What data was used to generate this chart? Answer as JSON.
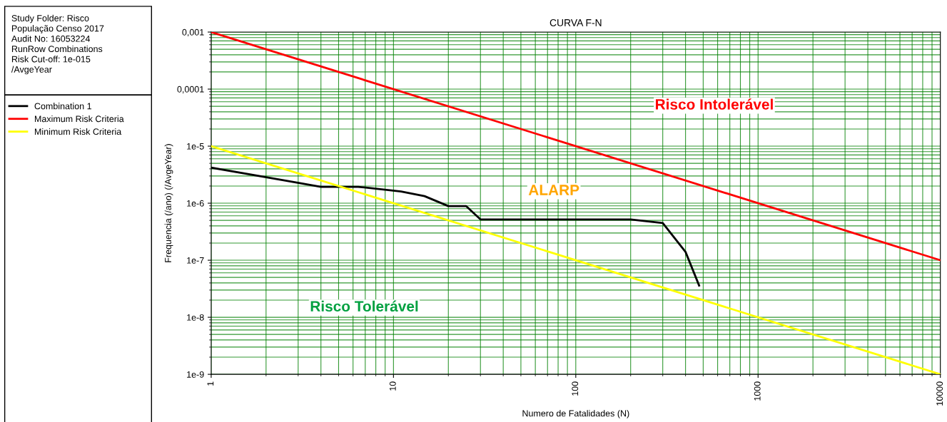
{
  "chart_data": {
    "type": "line",
    "title": "CURVA F-N",
    "xlabel": "Numero de Fatalidades (N)",
    "ylabel": "Frequencia (/ano) (/AvgeYear)",
    "series": [
      {
        "name": "Combination 1",
        "color": "#000000",
        "x": [
          1,
          4,
          6.4,
          11,
          14.8,
          20,
          25,
          30,
          200,
          300,
          400,
          475
        ],
        "values": [
          4.2e-06,
          1.94e-06,
          1.94e-06,
          1.6e-06,
          1.33e-06,
          8.9e-07,
          8.9e-07,
          5.2e-07,
          5.2e-07,
          4.5e-07,
          1.4e-07,
          3.6e-08
        ]
      },
      {
        "name": "Maximum Risk Criteria",
        "color": "#ff0000",
        "x": [
          1,
          10000
        ],
        "values": [
          0.001,
          1e-07
        ]
      },
      {
        "name": "Minimum Risk Criteria",
        "color": "#ffff00",
        "x": [
          1,
          10000
        ],
        "values": [
          1e-05,
          1e-09
        ]
      }
    ],
    "log": "xy",
    "xlim": [
      1,
      10000
    ],
    "ylim": [
      1e-09,
      0.001
    ],
    "xticks": [
      1,
      10,
      100,
      1000,
      10000
    ],
    "yticks": [
      {
        "value": 1e-09,
        "label": "1e-9"
      },
      {
        "value": 1e-08,
        "label": "1e-8"
      },
      {
        "value": 1e-07,
        "label": "1e-7"
      },
      {
        "value": 1e-06,
        "label": "1e-6"
      },
      {
        "value": 1e-05,
        "label": "1e-5"
      },
      {
        "value": 0.0001,
        "label": "0,0001"
      },
      {
        "value": 0.001,
        "label": "0,001"
      }
    ],
    "grid": true,
    "legend": "left",
    "marker": "none",
    "line_style": "solid",
    "annotations": [
      "Study Folder: Risco",
      "População Censo 2017",
      "Audit No: 16053224",
      "RunRow Combinations",
      "Risk Cut-off: 1e-015",
      "/AvgeYear",
      "Risco Intolerável",
      "ALARP",
      "Risco Tolerável"
    ]
  }
}
